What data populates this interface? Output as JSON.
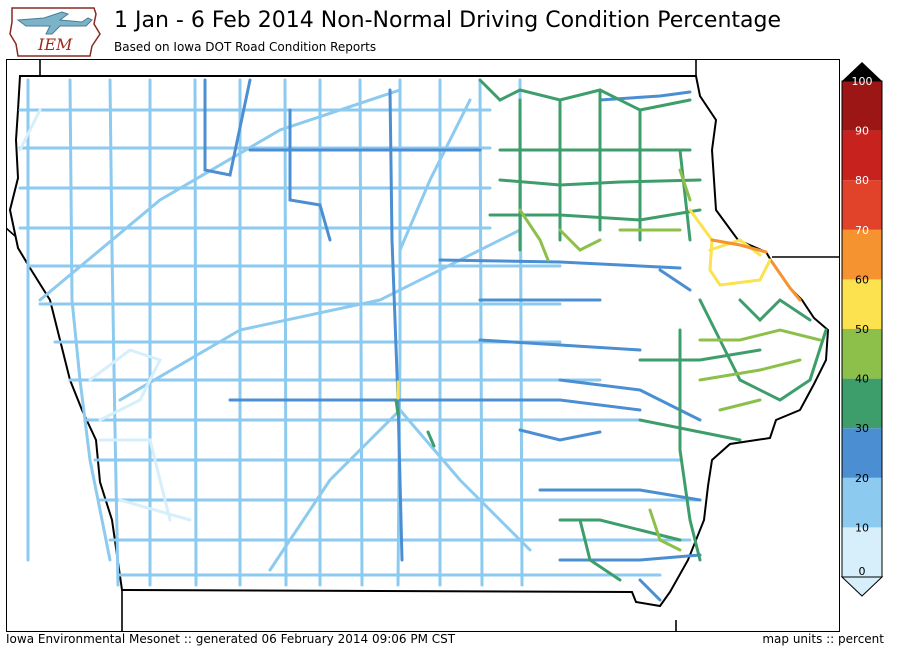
{
  "header": {
    "title": "1 Jan - 6 Feb 2014 Non-Normal Driving Condition Percentage",
    "subtitle": "Based on Iowa DOT Road Condition Reports",
    "logo_text": "IEM"
  },
  "legend": {
    "labels": [
      "0",
      "10",
      "20",
      "30",
      "40",
      "50",
      "60",
      "70",
      "80",
      "90",
      "100"
    ],
    "colors": [
      "#d6effa",
      "#8ccaef",
      "#4b8fd2",
      "#3d9e6b",
      "#8cc04a",
      "#fbe24e",
      "#f4932f",
      "#e0422a",
      "#c8221f",
      "#9b1615"
    ]
  },
  "footer": {
    "left": "Iowa Environmental Mesonet :: generated 06 February 2014 09:06 PM CST",
    "right": "map units :: percent"
  }
}
